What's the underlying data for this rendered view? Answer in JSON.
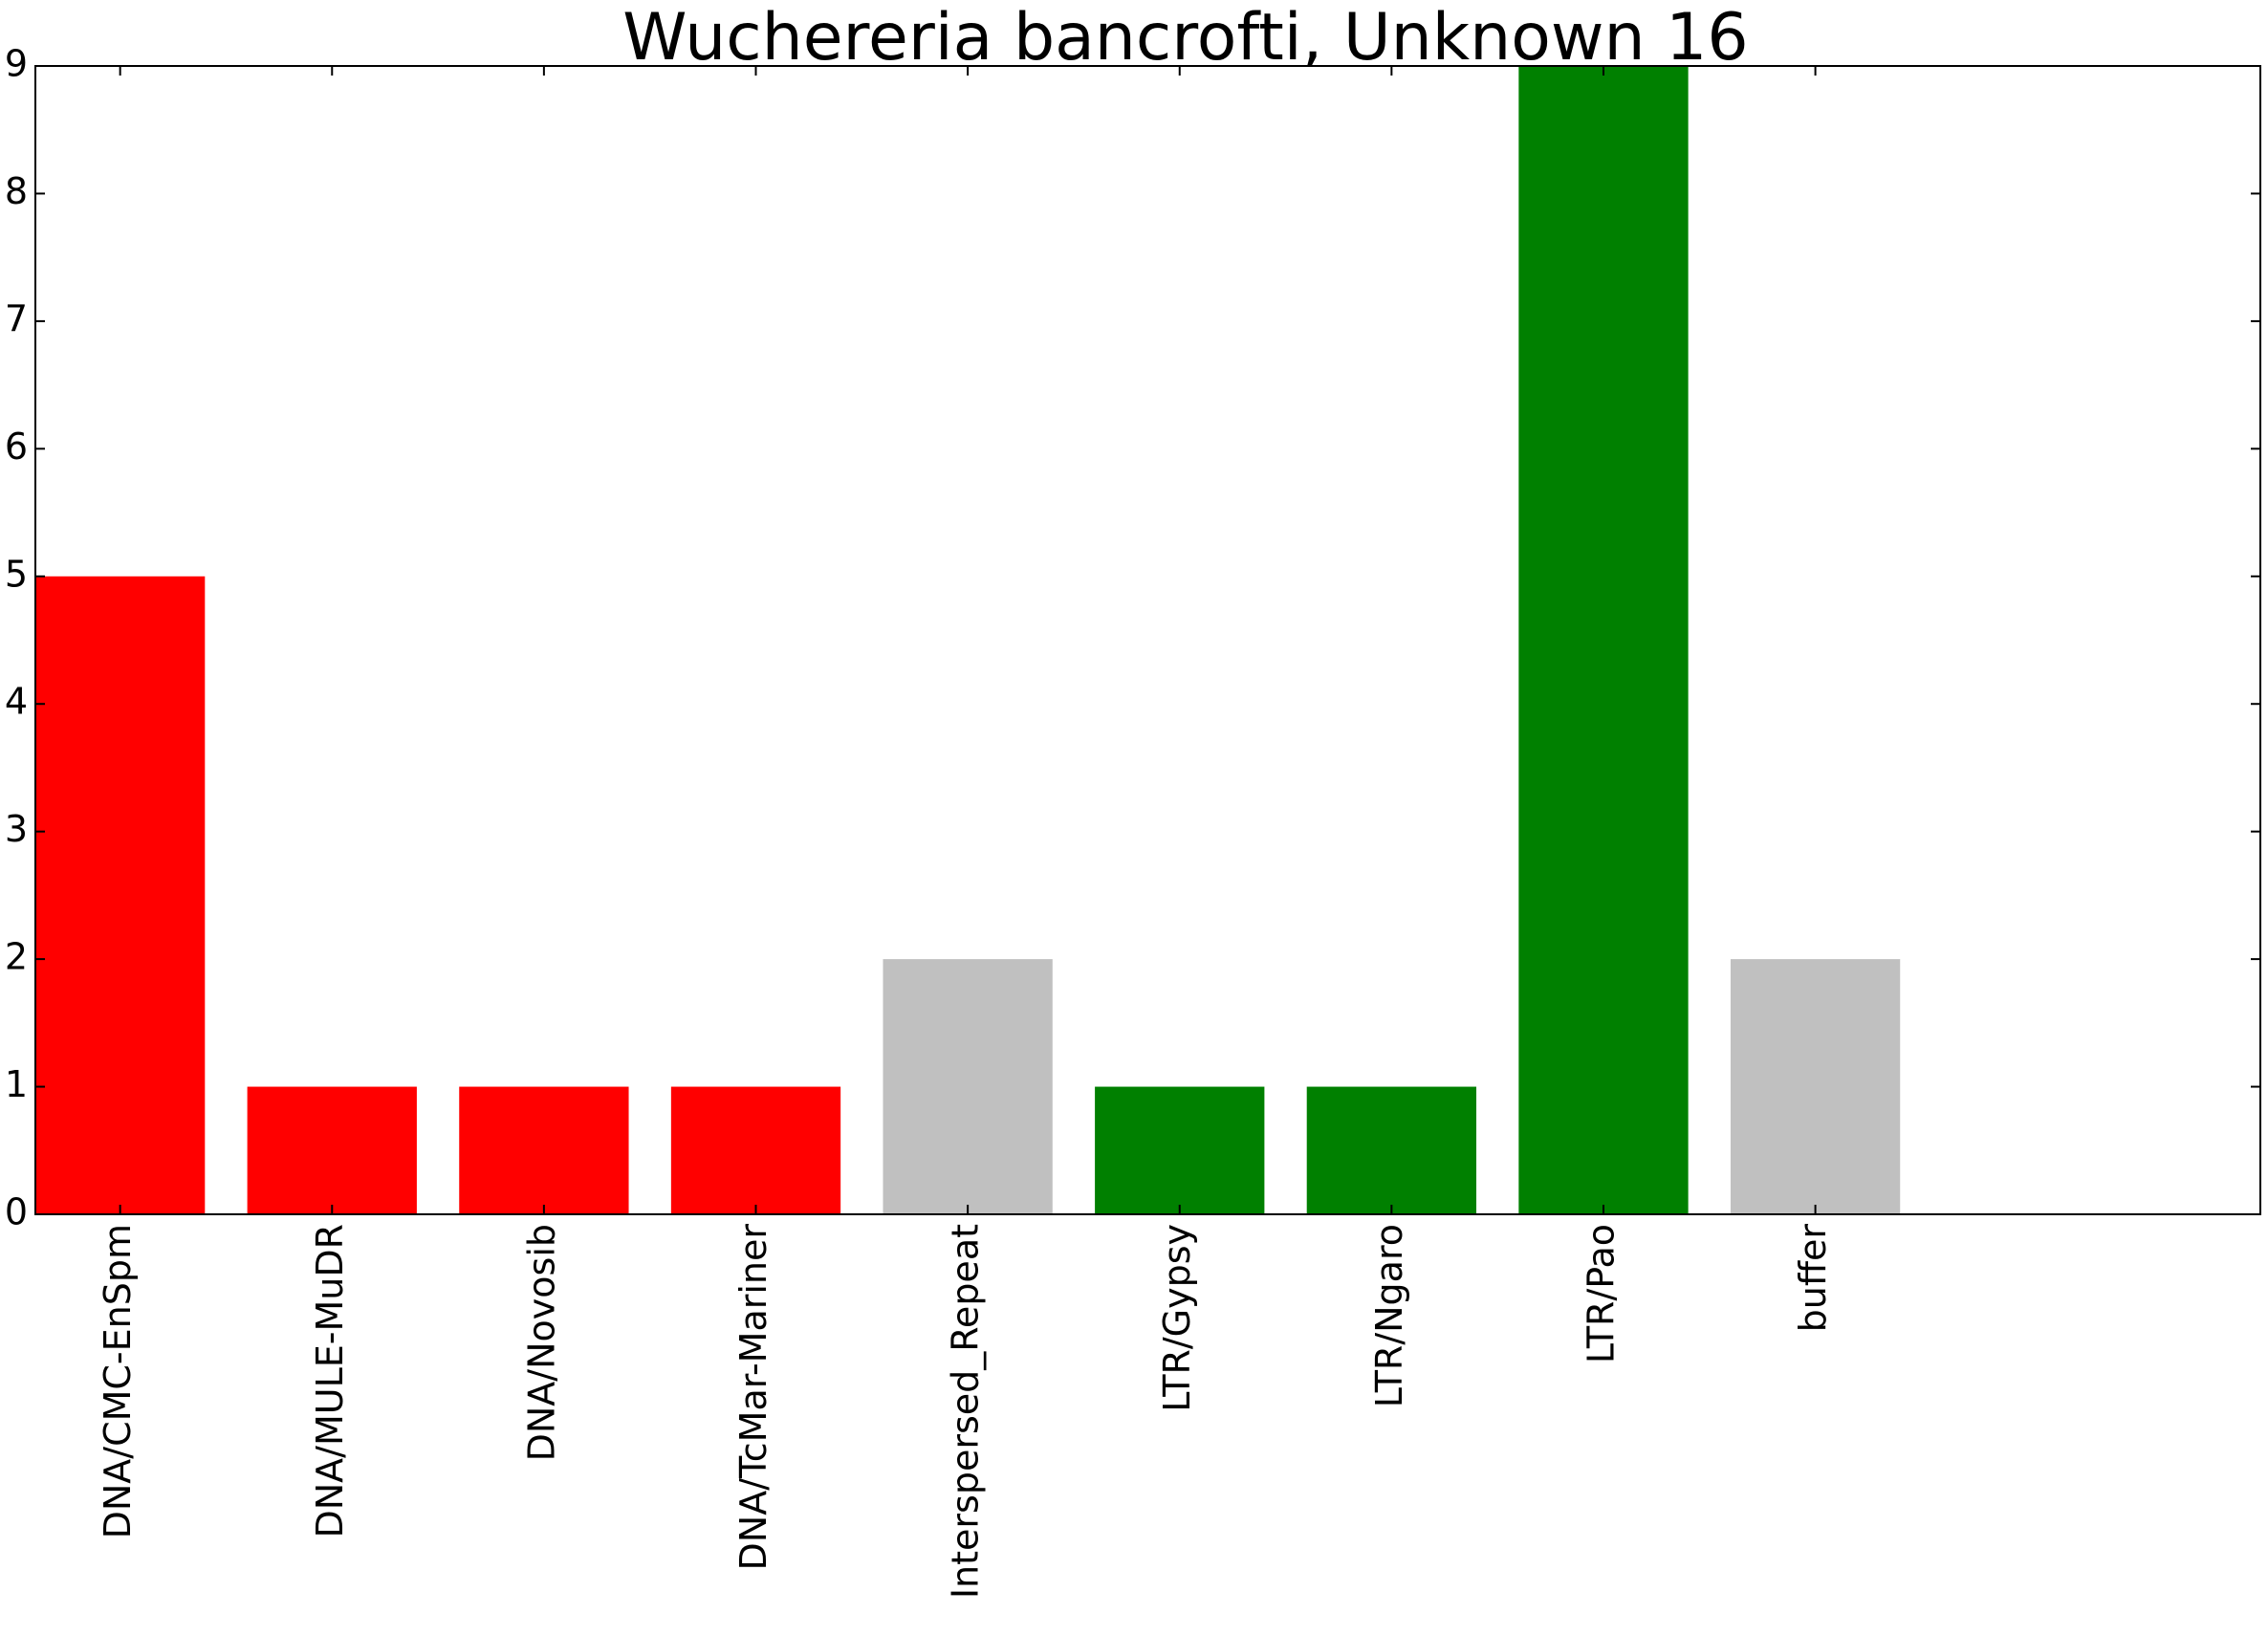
{
  "chart_data": {
    "type": "bar",
    "title": "Wuchereria bancrofti, Unknown 16",
    "xlabel": "",
    "ylabel": "",
    "categories": [
      "DNA/CMC-EnSpm",
      "DNA/MULE-MuDR",
      "DNA/Novosib",
      "DNA/TcMar-Mariner",
      "Interspersed_Repeat",
      "LTR/Gypsy",
      "LTR/Ngaro",
      "LTR/Pao",
      "buffer"
    ],
    "values": [
      5,
      1,
      1,
      1,
      2,
      1,
      1,
      9,
      2
    ],
    "bar_colors": [
      "#ff0000",
      "#ff0000",
      "#ff0000",
      "#ff0000",
      "#c0c0c0",
      "#008000",
      "#008000",
      "#008000",
      "#c0c0c0"
    ],
    "ylim": [
      0,
      9
    ],
    "xlim": [
      0,
      10.5
    ],
    "yticks": [
      "0",
      "1",
      "2",
      "3",
      "4",
      "5",
      "6",
      "7",
      "8",
      "9"
    ],
    "grid": false,
    "legend": "none"
  }
}
